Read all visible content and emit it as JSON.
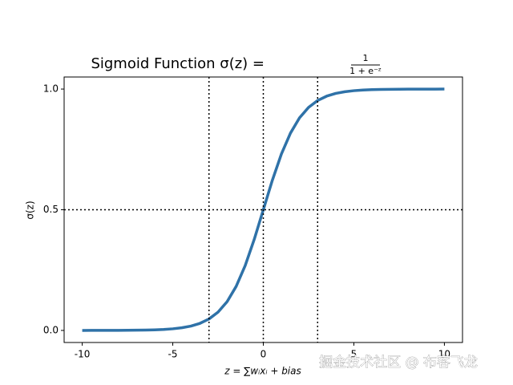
{
  "chart_data": {
    "type": "line",
    "title": "Sigmoid Function σ(z) =",
    "title_numerator": "1",
    "title_denominator": "1 + e⁻ᶻ",
    "xlabel": "z = ∑wᵢxᵢ + bias",
    "ylabel": "σ(z)",
    "watermark": "掘金技术社区 @ 布客飞龙",
    "x": [
      -10,
      -9.5,
      -9,
      -8.5,
      -8,
      -7.5,
      -7,
      -6.5,
      -6,
      -5.5,
      -5,
      -4.5,
      -4,
      -3.5,
      -3,
      -2.5,
      -2,
      -1.5,
      -1,
      -0.5,
      0,
      0.5,
      1,
      1.5,
      2,
      2.5,
      3,
      3.5,
      4,
      4.5,
      5,
      5.5,
      6,
      6.5,
      7,
      7.5,
      8,
      8.5,
      9,
      9.5,
      10
    ],
    "series": [
      {
        "color": "#2f72a8",
        "values": [
          0.0,
          0.0001,
          0.0001,
          0.0002,
          0.0003,
          0.0006,
          0.0009,
          0.0015,
          0.0025,
          0.0041,
          0.0067,
          0.011,
          0.018,
          0.0293,
          0.0474,
          0.0759,
          0.1192,
          0.1824,
          0.2689,
          0.3775,
          0.5,
          0.6225,
          0.7311,
          0.8176,
          0.8808,
          0.9241,
          0.9526,
          0.9707,
          0.982,
          0.989,
          0.9933,
          0.9959,
          0.9975,
          0.9985,
          0.9991,
          0.9994,
          0.9997,
          0.9998,
          0.9999,
          0.9999,
          1.0
        ]
      }
    ],
    "vlines": [
      -3,
      0,
      3
    ],
    "hlines": [
      0.5
    ],
    "xlim": [
      -11,
      11
    ],
    "ylim": [
      -0.05,
      1.05
    ],
    "xticks": [
      -10,
      -5,
      0,
      5,
      10
    ],
    "yticks": [
      {
        "value": 0,
        "label": "0.0"
      },
      0.5,
      {
        "value": 1,
        "label": "1.0"
      }
    ]
  }
}
